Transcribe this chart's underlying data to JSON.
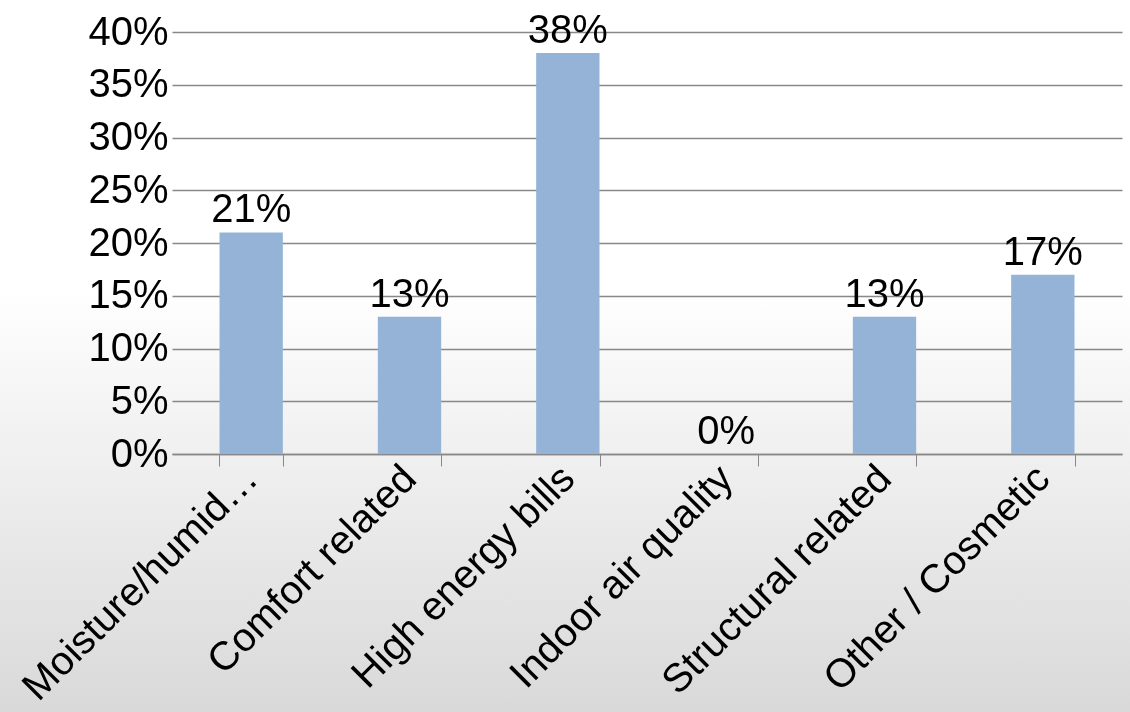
{
  "chart_data": {
    "type": "bar",
    "categories": [
      "Moisture/humid…",
      "Comfort related",
      "High energy bills",
      "Indoor air quality",
      "Structural related",
      "Other / Cosmetic"
    ],
    "values": [
      21,
      13,
      38,
      0,
      13,
      17
    ],
    "value_labels": [
      "21%",
      "13%",
      "38%",
      "0%",
      "13%",
      "17%"
    ],
    "color": "#95b3d7",
    "ylim": [
      0,
      40
    ],
    "yticks": [
      {
        "value": 0,
        "label": "0%"
      },
      {
        "value": 5,
        "label": "5%"
      },
      {
        "value": 10,
        "label": "10%"
      },
      {
        "value": 15,
        "label": "15%"
      },
      {
        "value": 20,
        "label": "20%"
      },
      {
        "value": 25,
        "label": "25%"
      },
      {
        "value": 30,
        "label": "30%"
      },
      {
        "value": 35,
        "label": "35%"
      },
      {
        "value": 40,
        "label": "40%"
      }
    ],
    "grid": "y"
  }
}
